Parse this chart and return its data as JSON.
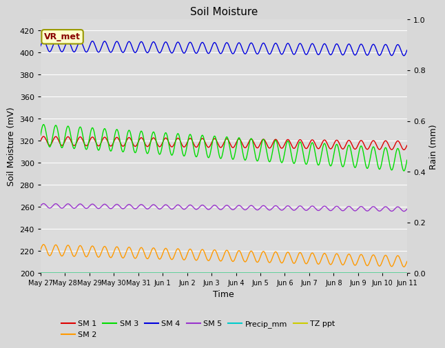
{
  "title": "Soil Moisture",
  "xlabel": "Time",
  "ylabel_left": "Soil Moisture (mV)",
  "ylabel_right": "Rain (mm)",
  "ylim_left": [
    200,
    430
  ],
  "ylim_right": [
    0.0,
    1.0
  ],
  "yticks_left": [
    200,
    220,
    240,
    260,
    280,
    300,
    320,
    340,
    360,
    380,
    400,
    420
  ],
  "yticks_right": [
    0.0,
    0.2,
    0.4,
    0.6,
    0.8,
    1.0
  ],
  "n_points": 1440,
  "duration_days": 15,
  "fig_bg_color": "#d8d8d8",
  "plot_bg_color": "#dcdcdc",
  "sm1": {
    "base": 320,
    "amplitude": 4,
    "trend": -0.28,
    "period": 0.5,
    "color": "#dd0000"
  },
  "sm2": {
    "base": 221,
    "amplitude": 5,
    "trend": -0.7,
    "period": 0.5,
    "color": "#ff9900"
  },
  "sm3": {
    "base": 325,
    "amplitude": 10,
    "trend": -1.5,
    "period": 0.5,
    "color": "#00dd00"
  },
  "sm4": {
    "base": 406,
    "amplitude": 5,
    "trend": -0.25,
    "period": 0.5,
    "color": "#0000dd"
  },
  "sm5": {
    "base": 261,
    "amplitude": 2,
    "trend": -0.2,
    "period": 0.5,
    "color": "#9933cc"
  },
  "precip_color": "#00cccc",
  "tz_ppt_color": "#cccc00",
  "legend_entries": [
    "SM 1",
    "SM 2",
    "SM 3",
    "SM 4",
    "SM 5",
    "Precip_mm",
    "TZ ppt"
  ],
  "legend_colors": [
    "#dd0000",
    "#ff9900",
    "#00dd00",
    "#0000dd",
    "#9933cc",
    "#00cccc",
    "#cccc00"
  ],
  "annotation_text": "VR_met",
  "x_tick_labels": [
    "May 27",
    "May 28",
    "May 29",
    "May 30",
    "May 31",
    "Jun 1",
    "Jun 2",
    "Jun 3",
    "Jun 4",
    "Jun 5",
    "Jun 6",
    "Jun 7",
    "Jun 8",
    "Jun 9",
    "Jun 10",
    "Jun 11"
  ],
  "grid_color": "#ffffff",
  "linewidth": 1.0
}
